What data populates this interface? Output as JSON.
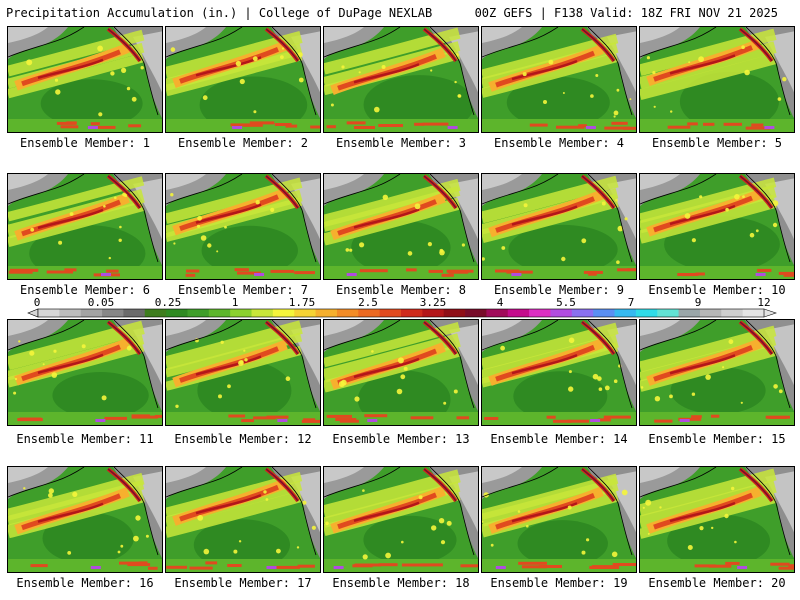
{
  "header": {
    "left_title": "Precipitation Accumulation (in.) | College of DuPage NEXLAB",
    "right_title": "00Z GEFS | F138 Valid: 18Z FRI NOV 21 2025"
  },
  "label_prefix": "Ensemble Member: ",
  "members": [
    1,
    2,
    3,
    4,
    5,
    6,
    7,
    8,
    9,
    10,
    11,
    12,
    13,
    14,
    15,
    16,
    17,
    18,
    19,
    20
  ],
  "colorbar": {
    "ticks": [
      "0",
      "0.05",
      "0.25",
      "1",
      "1.75",
      "2.5",
      "3.25",
      "4",
      "5.5",
      "7",
      "9",
      "12"
    ],
    "colors": [
      "#d6d6d6",
      "#bdbdbd",
      "#a3a3a3",
      "#878787",
      "#6b6b6b",
      "#3e7d1e",
      "#2f8a22",
      "#3f9e2a",
      "#5db52c",
      "#8bd12f",
      "#c8e63a",
      "#f5f53b",
      "#f6d334",
      "#f6b02e",
      "#f28c27",
      "#ec6a22",
      "#e04a1f",
      "#cf2a1c",
      "#b3161a",
      "#8f0f17",
      "#780d2a",
      "#a00b5a",
      "#c40c8c",
      "#dc2fc2",
      "#b14ce0",
      "#8a70f0",
      "#5a8ff2",
      "#36b9f0",
      "#30dbe8",
      "#62e3d5",
      "#9aa6a8",
      "#b6b6b6",
      "#cfcfcf",
      "#e4e4e4"
    ]
  }
}
